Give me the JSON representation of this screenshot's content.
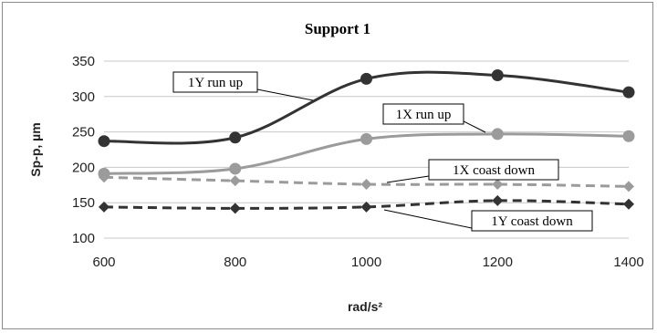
{
  "chart_data": {
    "type": "line",
    "title": "Support 1",
    "xlabel": "rad/s²",
    "ylabel": "Sp-p, µm",
    "x": [
      600,
      800,
      1000,
      1200,
      1400
    ],
    "xlim": [
      600,
      1400
    ],
    "ylim": [
      100,
      350
    ],
    "yticks": [
      100,
      150,
      200,
      250,
      300,
      350
    ],
    "xticks": [
      600,
      800,
      1000,
      1200,
      1400
    ],
    "grid": true,
    "legend": "callouts",
    "series": [
      {
        "name": "1Y run up",
        "values": [
          237,
          242,
          325,
          330,
          306
        ],
        "color": "#333333",
        "style": "solid",
        "marker": "circle"
      },
      {
        "name": "1X run up",
        "values": [
          191,
          198,
          240,
          247,
          244
        ],
        "color": "#9b9b9b",
        "style": "solid",
        "marker": "circle"
      },
      {
        "name": "1X coast down",
        "values": [
          186,
          181,
          176,
          176,
          173
        ],
        "color": "#9b9b9b",
        "style": "dashed",
        "marker": "diamond"
      },
      {
        "name": "1Y coast down",
        "values": [
          144,
          142,
          144,
          153,
          148
        ],
        "color": "#333333",
        "style": "dashed",
        "marker": "diamond"
      }
    ]
  }
}
